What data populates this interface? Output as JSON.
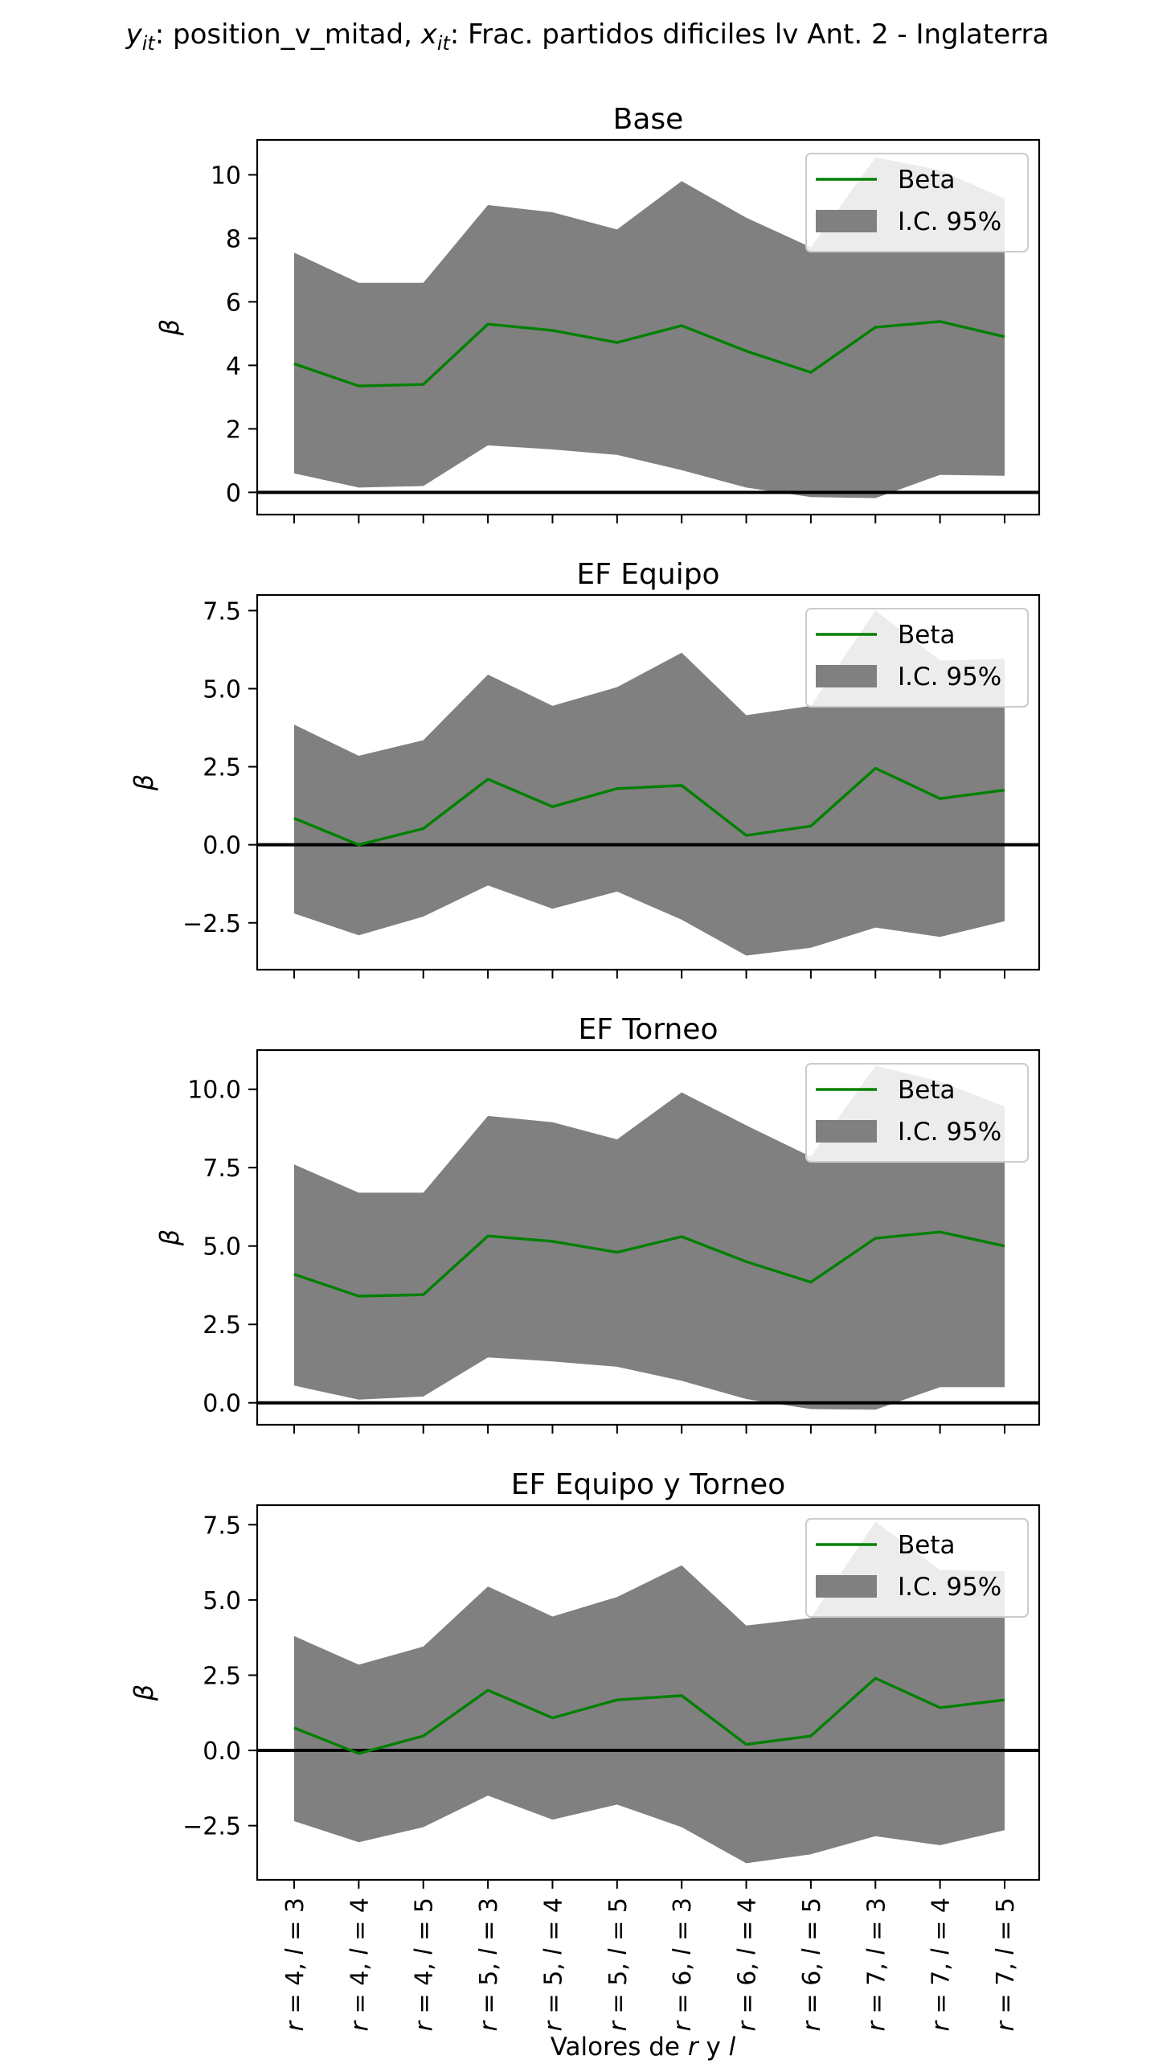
{
  "figure": {
    "suptitle_parts": [
      {
        "text": "y",
        "style": "italic"
      },
      {
        "text": "it",
        "style": "sub"
      },
      {
        "text": ": position_v_mitad, ",
        "style": "normal"
      },
      {
        "text": "x",
        "style": "italic"
      },
      {
        "text": "it",
        "style": "sub"
      },
      {
        "text": ": Frac. partidos dificiles lv Ant. 2 - Inglaterra",
        "style": "normal"
      }
    ],
    "xlabel_parts": [
      {
        "text": "Valores de ",
        "style": "normal"
      },
      {
        "text": "r",
        "style": "italic"
      },
      {
        "text": " y ",
        "style": "normal"
      },
      {
        "text": "l",
        "style": "italic"
      }
    ],
    "ylabel": "β",
    "legend": {
      "line_label": "Beta",
      "band_label": "I.C. 95%",
      "position": "top-right"
    },
    "colors": {
      "line": "#008000",
      "band": "#808080",
      "zero_line": "#000000"
    }
  },
  "chart_data": [
    {
      "type": "line",
      "title": "Base",
      "categories": [
        {
          "r": "4",
          "l": "3"
        },
        {
          "r": "4",
          "l": "4"
        },
        {
          "r": "4",
          "l": "5"
        },
        {
          "r": "5",
          "l": "3"
        },
        {
          "r": "5",
          "l": "4"
        },
        {
          "r": "5",
          "l": "5"
        },
        {
          "r": "6",
          "l": "3"
        },
        {
          "r": "6",
          "l": "4"
        },
        {
          "r": "6",
          "l": "5"
        },
        {
          "r": "7",
          "l": "3"
        },
        {
          "r": "7",
          "l": "4"
        },
        {
          "r": "7",
          "l": "5"
        }
      ],
      "series": [
        {
          "name": "Beta",
          "values": [
            4.05,
            3.35,
            3.4,
            5.3,
            5.1,
            4.72,
            5.25,
            4.45,
            3.78,
            5.2,
            5.38,
            4.9
          ]
        },
        {
          "name": "I.C. 95%",
          "lower": [
            0.6,
            0.15,
            0.2,
            1.48,
            1.35,
            1.18,
            0.7,
            0.15,
            -0.15,
            -0.18,
            0.55,
            0.52
          ],
          "upper": [
            7.55,
            6.6,
            6.6,
            9.05,
            8.82,
            8.28,
            9.8,
            8.65,
            7.72,
            10.55,
            10.15,
            9.25
          ]
        }
      ],
      "yticks": [
        0,
        2,
        4,
        6,
        8,
        10
      ],
      "ytick_labels": [
        "0",
        "2",
        "4",
        "6",
        "8",
        "10"
      ],
      "ylim": [
        -0.7,
        11.1
      ],
      "hline": 0
    },
    {
      "type": "line",
      "title": "EF Equipo",
      "categories": [
        {
          "r": "4",
          "l": "3"
        },
        {
          "r": "4",
          "l": "4"
        },
        {
          "r": "4",
          "l": "5"
        },
        {
          "r": "5",
          "l": "3"
        },
        {
          "r": "5",
          "l": "4"
        },
        {
          "r": "5",
          "l": "5"
        },
        {
          "r": "6",
          "l": "3"
        },
        {
          "r": "6",
          "l": "4"
        },
        {
          "r": "6",
          "l": "5"
        },
        {
          "r": "7",
          "l": "3"
        },
        {
          "r": "7",
          "l": "4"
        },
        {
          "r": "7",
          "l": "5"
        }
      ],
      "series": [
        {
          "name": "Beta",
          "values": [
            0.85,
            0.0,
            0.52,
            2.1,
            1.22,
            1.8,
            1.9,
            0.3,
            0.6,
            2.45,
            1.48,
            1.75
          ]
        },
        {
          "name": "I.C. 95%",
          "lower": [
            -2.2,
            -2.9,
            -2.3,
            -1.3,
            -2.05,
            -1.5,
            -2.4,
            -3.55,
            -3.3,
            -2.65,
            -2.95,
            -2.45
          ],
          "upper": [
            3.85,
            2.85,
            3.35,
            5.45,
            4.45,
            5.05,
            6.15,
            4.15,
            4.45,
            7.5,
            5.9,
            5.95
          ]
        }
      ],
      "yticks": [
        -2.5,
        0.0,
        2.5,
        5.0,
        7.5
      ],
      "ytick_labels": [
        "−2.5",
        "0.0",
        "2.5",
        "5.0",
        "7.5"
      ],
      "ylim": [
        -4.0,
        8.0
      ],
      "hline": 0
    },
    {
      "type": "line",
      "title": "EF Torneo",
      "categories": [
        {
          "r": "4",
          "l": "3"
        },
        {
          "r": "4",
          "l": "4"
        },
        {
          "r": "4",
          "l": "5"
        },
        {
          "r": "5",
          "l": "3"
        },
        {
          "r": "5",
          "l": "4"
        },
        {
          "r": "5",
          "l": "5"
        },
        {
          "r": "6",
          "l": "3"
        },
        {
          "r": "6",
          "l": "4"
        },
        {
          "r": "6",
          "l": "5"
        },
        {
          "r": "7",
          "l": "3"
        },
        {
          "r": "7",
          "l": "4"
        },
        {
          "r": "7",
          "l": "5"
        }
      ],
      "series": [
        {
          "name": "Beta",
          "values": [
            4.1,
            3.4,
            3.45,
            5.32,
            5.15,
            4.8,
            5.3,
            4.5,
            3.85,
            5.25,
            5.45,
            5.0
          ]
        },
        {
          "name": "I.C. 95%",
          "lower": [
            0.55,
            0.1,
            0.2,
            1.45,
            1.32,
            1.15,
            0.7,
            0.12,
            -0.2,
            -0.22,
            0.5,
            0.5
          ],
          "upper": [
            7.6,
            6.7,
            6.7,
            9.15,
            8.95,
            8.4,
            9.9,
            8.85,
            7.85,
            10.75,
            10.25,
            9.45
          ]
        }
      ],
      "yticks": [
        0.0,
        2.5,
        5.0,
        7.5,
        10.0
      ],
      "ytick_labels": [
        "0.0",
        "2.5",
        "5.0",
        "7.5",
        "10.0"
      ],
      "ylim": [
        -0.7,
        11.25
      ],
      "hline": 0
    },
    {
      "type": "line",
      "title": "EF Equipo y Torneo",
      "categories": [
        {
          "r": "4",
          "l": "3"
        },
        {
          "r": "4",
          "l": "4"
        },
        {
          "r": "4",
          "l": "5"
        },
        {
          "r": "5",
          "l": "3"
        },
        {
          "r": "5",
          "l": "4"
        },
        {
          "r": "5",
          "l": "5"
        },
        {
          "r": "6",
          "l": "3"
        },
        {
          "r": "6",
          "l": "4"
        },
        {
          "r": "6",
          "l": "5"
        },
        {
          "r": "7",
          "l": "3"
        },
        {
          "r": "7",
          "l": "4"
        },
        {
          "r": "7",
          "l": "5"
        }
      ],
      "series": [
        {
          "name": "Beta",
          "values": [
            0.75,
            -0.1,
            0.48,
            2.0,
            1.08,
            1.68,
            1.82,
            0.2,
            0.48,
            2.4,
            1.42,
            1.68
          ]
        },
        {
          "name": "I.C. 95%",
          "lower": [
            -2.35,
            -3.05,
            -2.55,
            -1.5,
            -2.3,
            -1.8,
            -2.55,
            -3.75,
            -3.45,
            -2.85,
            -3.15,
            -2.65
          ],
          "upper": [
            3.8,
            2.85,
            3.45,
            5.45,
            4.45,
            5.1,
            6.15,
            4.15,
            4.4,
            7.6,
            6.0,
            5.95
          ]
        }
      ],
      "yticks": [
        -2.5,
        0.0,
        2.5,
        5.0,
        7.5
      ],
      "ytick_labels": [
        "−2.5",
        "0.0",
        "2.5",
        "5.0",
        "7.5"
      ],
      "ylim": [
        -4.3,
        8.15
      ],
      "hline": 0
    }
  ]
}
